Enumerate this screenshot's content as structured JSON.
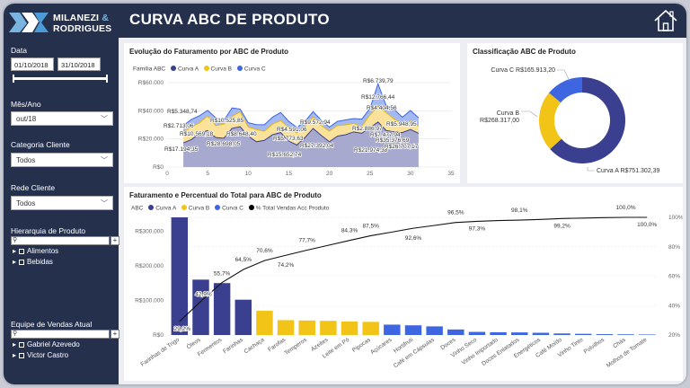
{
  "brand": {
    "name_top": "MILANEZI",
    "amp": "&",
    "name_bottom": "RODRIGUES"
  },
  "header": {
    "title": "CURVA ABC DE PRODUTO"
  },
  "colors": {
    "navy": "#25304d",
    "curva_a": "#3a3f8f",
    "curva_b": "#f2c417",
    "curva_c": "#3d66e0",
    "accent": "#7ab4e0"
  },
  "sidebar": {
    "date_label": "Data",
    "date_start": "01/10/2018",
    "date_end": "31/10/2018",
    "mes_label": "Mês/Ano",
    "mes_value": "out/18",
    "categoria_label": "Categoria Cliente",
    "categoria_value": "Todos",
    "rede_label": "Rede Cliente",
    "rede_value": "Todos",
    "hierarquia_label": "Hierarquia de Produto",
    "hierarquia_items": [
      "Alimentos",
      "Bebidas"
    ],
    "equipe_label": "Equipe de Vendas Atual",
    "equipe_items": [
      "Gabriel Azevedo",
      "Victor Castro"
    ]
  },
  "evolucao": {
    "title": "Evolução do Faturamento por ABC de Produto",
    "legend_title": "Família ABC",
    "legend": [
      "Curva A",
      "Curva B",
      "Curva C"
    ],
    "annotations": [
      "R$5.348,74",
      "R$2.713,06",
      "R$10.569,18",
      "R$10.525,85",
      "R$28.698,05",
      "R$8.648,40",
      "R$4.591,06",
      "R$5.773,63",
      "R$9.572,94",
      "R$17.194,35",
      "R$15.652,74",
      "R$27.392,04",
      "R$21.974,38",
      "R$6.739,79",
      "R$12.766,44",
      "R$4.404,56",
      "R$2.886,97",
      "R$7.477,94",
      "R$5.948,95",
      "R$35.376,69",
      "R$26.707,17"
    ]
  },
  "classificacao": {
    "title": "Classificação ABC de Produto",
    "slices": [
      {
        "label": "Curva A R$751.302,39",
        "value": 751302.39
      },
      {
        "label": "Curva B R$268.317,00",
        "value": 268317.0
      },
      {
        "label": "Curva C R$165.913,20",
        "value": 165913.2
      }
    ],
    "label_b_line1": "Curva B",
    "label_b_line2": "R$268.317,00"
  },
  "faturamento": {
    "title": "Faturamento e Percentual do Total para ABC de Produto",
    "legend_title": "ABC",
    "legend": [
      "Curva A",
      "Curva B",
      "Curva C",
      "% Total Vendas Acc Produto"
    ]
  },
  "chart_data": [
    {
      "type": "area",
      "title": "Evolução do Faturamento por ABC de Produto",
      "x": [
        2,
        3,
        4,
        5,
        6,
        7,
        8,
        9,
        10,
        11,
        12,
        13,
        14,
        15,
        16,
        17,
        18,
        19,
        20,
        21,
        22,
        23,
        24,
        25,
        26,
        27,
        28,
        29,
        30,
        31
      ],
      "series": [
        {
          "name": "Curva A",
          "values": [
            17194,
            19500,
            24000,
            26000,
            21000,
            20500,
            27500,
            28698,
            22000,
            18000,
            19000,
            23000,
            24500,
            18500,
            15653,
            21000,
            27392,
            22500,
            18000,
            21974,
            23000,
            25000,
            24000,
            28000,
            32000,
            26000,
            25000,
            24500,
            26707,
            24000
          ]
        },
        {
          "name": "Curva B",
          "values": [
            7800,
            9000,
            7500,
            10300,
            8500,
            10000,
            8500,
            10526,
            6500,
            8648,
            6500,
            7500,
            8500,
            9500,
            8500,
            8000,
            8000,
            7000,
            7500,
            7478,
            7000,
            6000,
            4900,
            9000,
            11000,
            12766,
            9000,
            6500,
            5949,
            5000
          ]
        },
        {
          "name": "Curva C",
          "values": [
            4500,
            5349,
            5000,
            4000,
            5500,
            2713,
            6000,
            2000,
            3000,
            3500,
            4591,
            5000,
            5774,
            4500,
            4000,
            3500,
            4000,
            3800,
            2887,
            3000,
            3500,
            3500,
            5200,
            4500,
            16200,
            5000,
            7000,
            4405,
            7500,
            6000
          ]
        }
      ],
      "xlim": [
        0,
        35
      ],
      "xticks": [
        0,
        5,
        10,
        15,
        20,
        25,
        30,
        35
      ],
      "ylim": [
        0,
        60000
      ],
      "yticks": [
        "R$0",
        "R$20.000",
        "R$40.000",
        "R$60.000"
      ]
    },
    {
      "type": "pie",
      "title": "Classificação ABC de Produto",
      "categories": [
        "Curva A",
        "Curva B",
        "Curva C"
      ],
      "values": [
        751302.39,
        268317.0,
        165913.2
      ]
    },
    {
      "type": "bar",
      "title": "Faturamento e Percentual do Total para ABC de Produto",
      "categories": [
        "Farinhas de Trigo",
        "Óleos",
        "Fermentos",
        "Farinhas",
        "Cachaça",
        "Farofas",
        "Temperos",
        "Azeites",
        "Leite em Pó",
        "Pipocas",
        "Açúcares",
        "Hortifruti",
        "Café em Cápsulas",
        "Doces",
        "Vinho Seco",
        "Vinho Importado",
        "Doces Enlatados",
        "Energéticos",
        "Café Moído",
        "Vinho Tinto",
        "Polvilhos",
        "Chás",
        "Molhos de Tomate"
      ],
      "curva": [
        "A",
        "A",
        "A",
        "A",
        "B",
        "B",
        "B",
        "B",
        "B",
        "B",
        "C",
        "C",
        "C",
        "C",
        "C",
        "C",
        "C",
        "C",
        "C",
        "C",
        "C",
        "C",
        "C"
      ],
      "values": [
        340000,
        160000,
        150000,
        102000,
        70000,
        43000,
        42000,
        41000,
        39000,
        38000,
        30000,
        28000,
        25000,
        16000,
        9000,
        8000,
        7500,
        6500,
        4500,
        3500,
        2500,
        2000,
        1500
      ],
      "pct_line": [
        29.2,
        42.9,
        55.7,
        64.5,
        70.6,
        74.2,
        77.7,
        81.0,
        84.3,
        87.5,
        90.0,
        92.6,
        94.5,
        96.5,
        97.3,
        97.8,
        98.1,
        98.6,
        99.2,
        99.5,
        99.8,
        100.0,
        100.0
      ],
      "pct_labels": [
        "29,2%",
        "42,9%",
        "55,7%",
        "64,5%",
        "70,6%",
        "74,2%",
        "77,7%",
        "84,3%",
        "87,5%",
        "92,6%",
        "96,5%",
        "97,3%",
        "98,1%",
        "99,2%",
        "100,0%",
        "100,0%"
      ],
      "ylim": [
        0,
        340000
      ],
      "yticks": [
        "R$0",
        "R$100.000",
        "R$200.000",
        "R$300.000"
      ],
      "y2ticks": [
        "20%",
        "40%",
        "60%",
        "80%",
        "100%"
      ]
    }
  ]
}
